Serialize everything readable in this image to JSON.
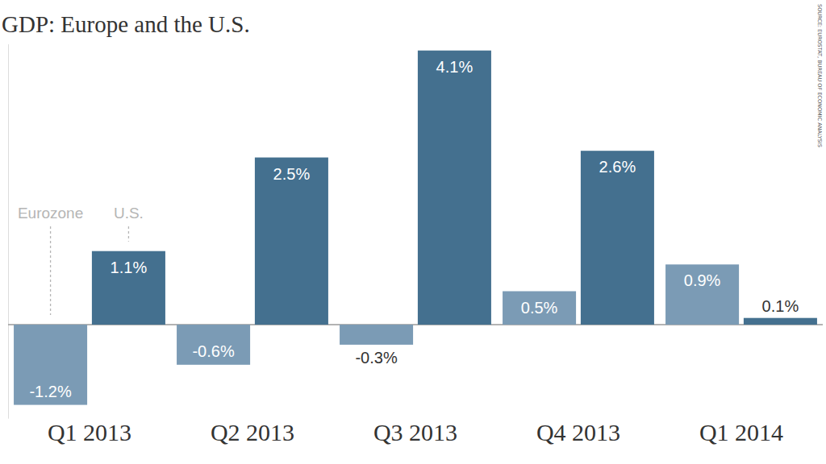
{
  "chart_data": {
    "type": "bar",
    "title": "GDP: Europe and the U.S.",
    "source": "SOURCE: EUROSTAT, BUREAU OF ECONOMIC ANALYSIS",
    "categories": [
      "Q1 2013",
      "Q2 2013",
      "Q3 2013",
      "Q4 2013",
      "Q1 2014"
    ],
    "series": [
      {
        "name": "Eurozone",
        "color": "#7b9bb5",
        "values": [
          -1.2,
          -0.6,
          -0.3,
          0.5,
          0.9
        ],
        "value_labels": [
          "-1.2%",
          "-0.6%",
          "-0.3%",
          "0.5%",
          "0.9%"
        ]
      },
      {
        "name": "U.S.",
        "color": "#44708f",
        "values": [
          1.1,
          2.5,
          4.1,
          2.6,
          0.1
        ],
        "value_labels": [
          "1.1%",
          "2.5%",
          "4.1%",
          "2.6%",
          "0.1%"
        ]
      }
    ],
    "ylim": [
      -1.4,
      4.2
    ],
    "yticks": [
      0
    ],
    "grid": true,
    "data_labels": true,
    "tick_labels": "x"
  }
}
